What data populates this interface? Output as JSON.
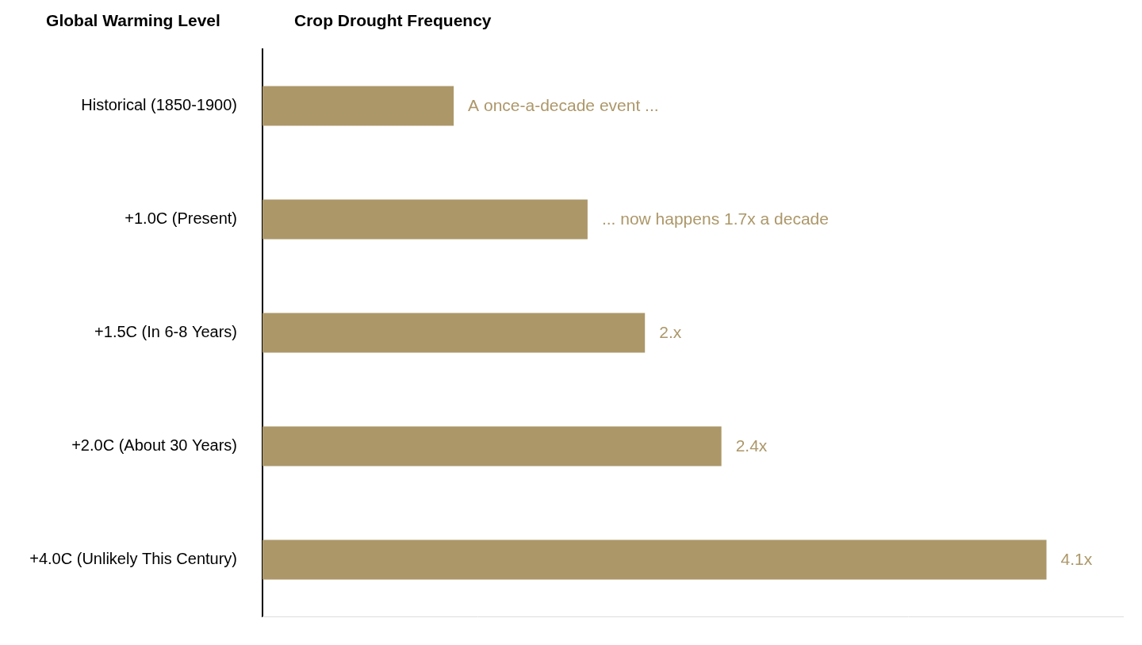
{
  "chart_data": {
    "type": "bar",
    "orientation": "horizontal",
    "x_label": "Crop Drought Frequency",
    "y_label": "Global Warming Level",
    "categories": [
      "Historical (1850-1900)",
      "+1.0C (Present)",
      "+1.5C (In 6-8 Years)",
      "+2.0C (About 30 Years)",
      "+4.0C (Unlikely This Century)"
    ],
    "values": [
      1,
      1.7,
      2,
      2.4,
      4.1
    ],
    "value_labels": [
      "A once-a-decade event ...",
      "... now happens 1.7x a decade",
      "2.x",
      "2.4x",
      "4.1x"
    ],
    "data_labels": true,
    "color": "#ac9769",
    "xlim": [
      0,
      4.5
    ],
    "grid": false,
    "tick_labels": "y"
  }
}
